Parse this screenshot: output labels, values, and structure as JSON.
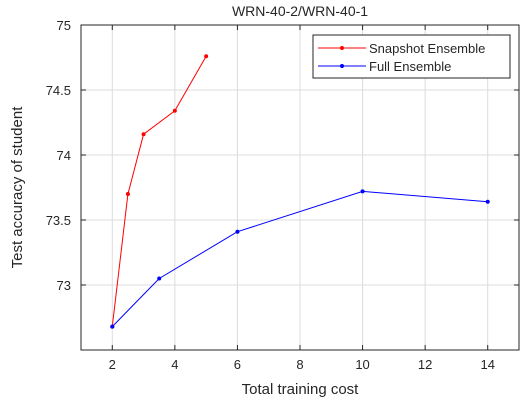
{
  "chart_data": {
    "type": "line",
    "title": "WRN-40-2/WRN-40-1",
    "xlabel": "Total training cost",
    "ylabel": "Test accuracy of student",
    "xlim": [
      1,
      15
    ],
    "ylim": [
      72.5,
      75
    ],
    "xticks": [
      2,
      4,
      6,
      8,
      10,
      12,
      14
    ],
    "yticks": [
      73,
      73.5,
      74,
      74.5,
      75
    ],
    "xtick_labels": [
      "2",
      "4",
      "6",
      "8",
      "10",
      "12",
      "14"
    ],
    "ytick_labels": [
      "73",
      "73.5",
      "74",
      "74.5",
      "75"
    ],
    "grid": true,
    "legend_position": "top-right",
    "series": [
      {
        "name": "Snapshot Ensemble",
        "color": "#ff0000",
        "x": [
          2,
          2.5,
          3,
          4,
          5
        ],
        "y": [
          72.68,
          73.7,
          74.16,
          74.34,
          74.76
        ]
      },
      {
        "name": "Full Ensemble",
        "color": "#0000ff",
        "x": [
          2,
          3.5,
          6,
          10,
          14
        ],
        "y": [
          72.68,
          73.05,
          73.41,
          73.72,
          73.64
        ]
      }
    ]
  }
}
